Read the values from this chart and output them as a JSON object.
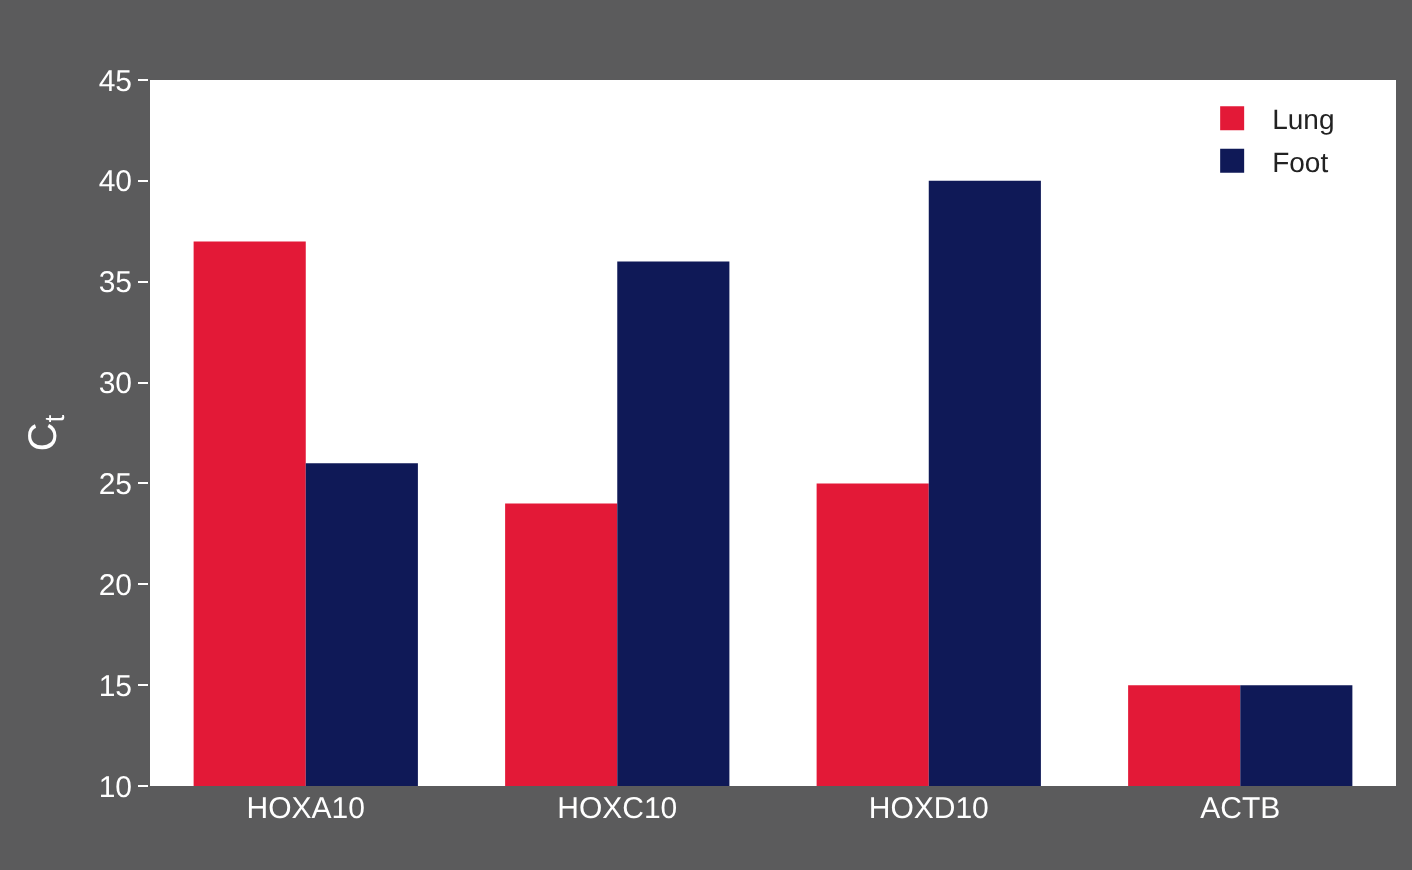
{
  "chart_data": {
    "type": "bar",
    "ylabel": "C$_{t}$",
    "categories": [
      "HOXA10",
      "HOXC10",
      "HOXD10",
      "ACTB"
    ],
    "series": [
      {
        "name": "Lung",
        "color": "#e31937",
        "values": [
          37,
          24,
          25,
          15
        ]
      },
      {
        "name": "Foot",
        "color": "#0f1957",
        "values": [
          26,
          36,
          40,
          15
        ]
      }
    ],
    "ylim": [
      10,
      45
    ],
    "yticks": [
      10,
      15,
      20,
      25,
      30,
      35,
      40,
      45
    ],
    "legend": "top right"
  }
}
